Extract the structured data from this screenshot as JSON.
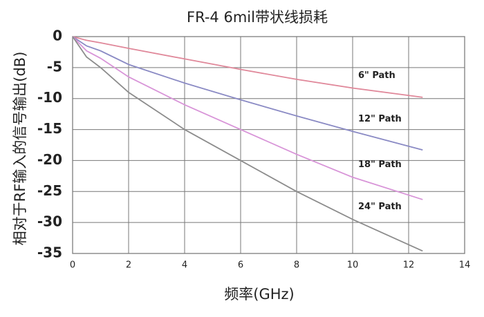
{
  "chart_data": {
    "type": "line",
    "title": "FR-4 6mil带状线损耗",
    "x_label": "频率(GHz)",
    "y_label": "相对于RF输入的信号输出(dB)",
    "x": [
      0,
      0.5,
      1,
      2,
      4,
      6,
      8,
      10,
      12.5
    ],
    "series": [
      {
        "name": "6\" Path",
        "color": "#e0889a",
        "values": [
          0,
          -0.6,
          -1,
          -1.9,
          -3.6,
          -5.3,
          -6.9,
          -8.3,
          -9.8
        ]
      },
      {
        "name": "12\" Path",
        "color": "#8a8ac4",
        "values": [
          0,
          -1.5,
          -2.3,
          -4.5,
          -7.5,
          -10.2,
          -12.8,
          -15.3,
          -18.3
        ]
      },
      {
        "name": "18\" Path",
        "color": "#d894d8",
        "values": [
          0,
          -2.3,
          -3.5,
          -6.5,
          -11,
          -15,
          -19,
          -22.7,
          -26.3
        ]
      },
      {
        "name": "24\" Path",
        "color": "#8c8c8c",
        "values": [
          0,
          -3.3,
          -5,
          -9,
          -15,
          -20,
          -25,
          -29.5,
          -34.6
        ]
      }
    ],
    "xlim": [
      0,
      14
    ],
    "xticks": [
      0,
      2,
      4,
      6,
      8,
      10,
      12,
      14
    ],
    "ylim": [
      -35,
      0
    ],
    "yticks": [
      0,
      -5,
      -10,
      -15,
      -20,
      -25,
      -30,
      -35
    ],
    "grid": true
  }
}
